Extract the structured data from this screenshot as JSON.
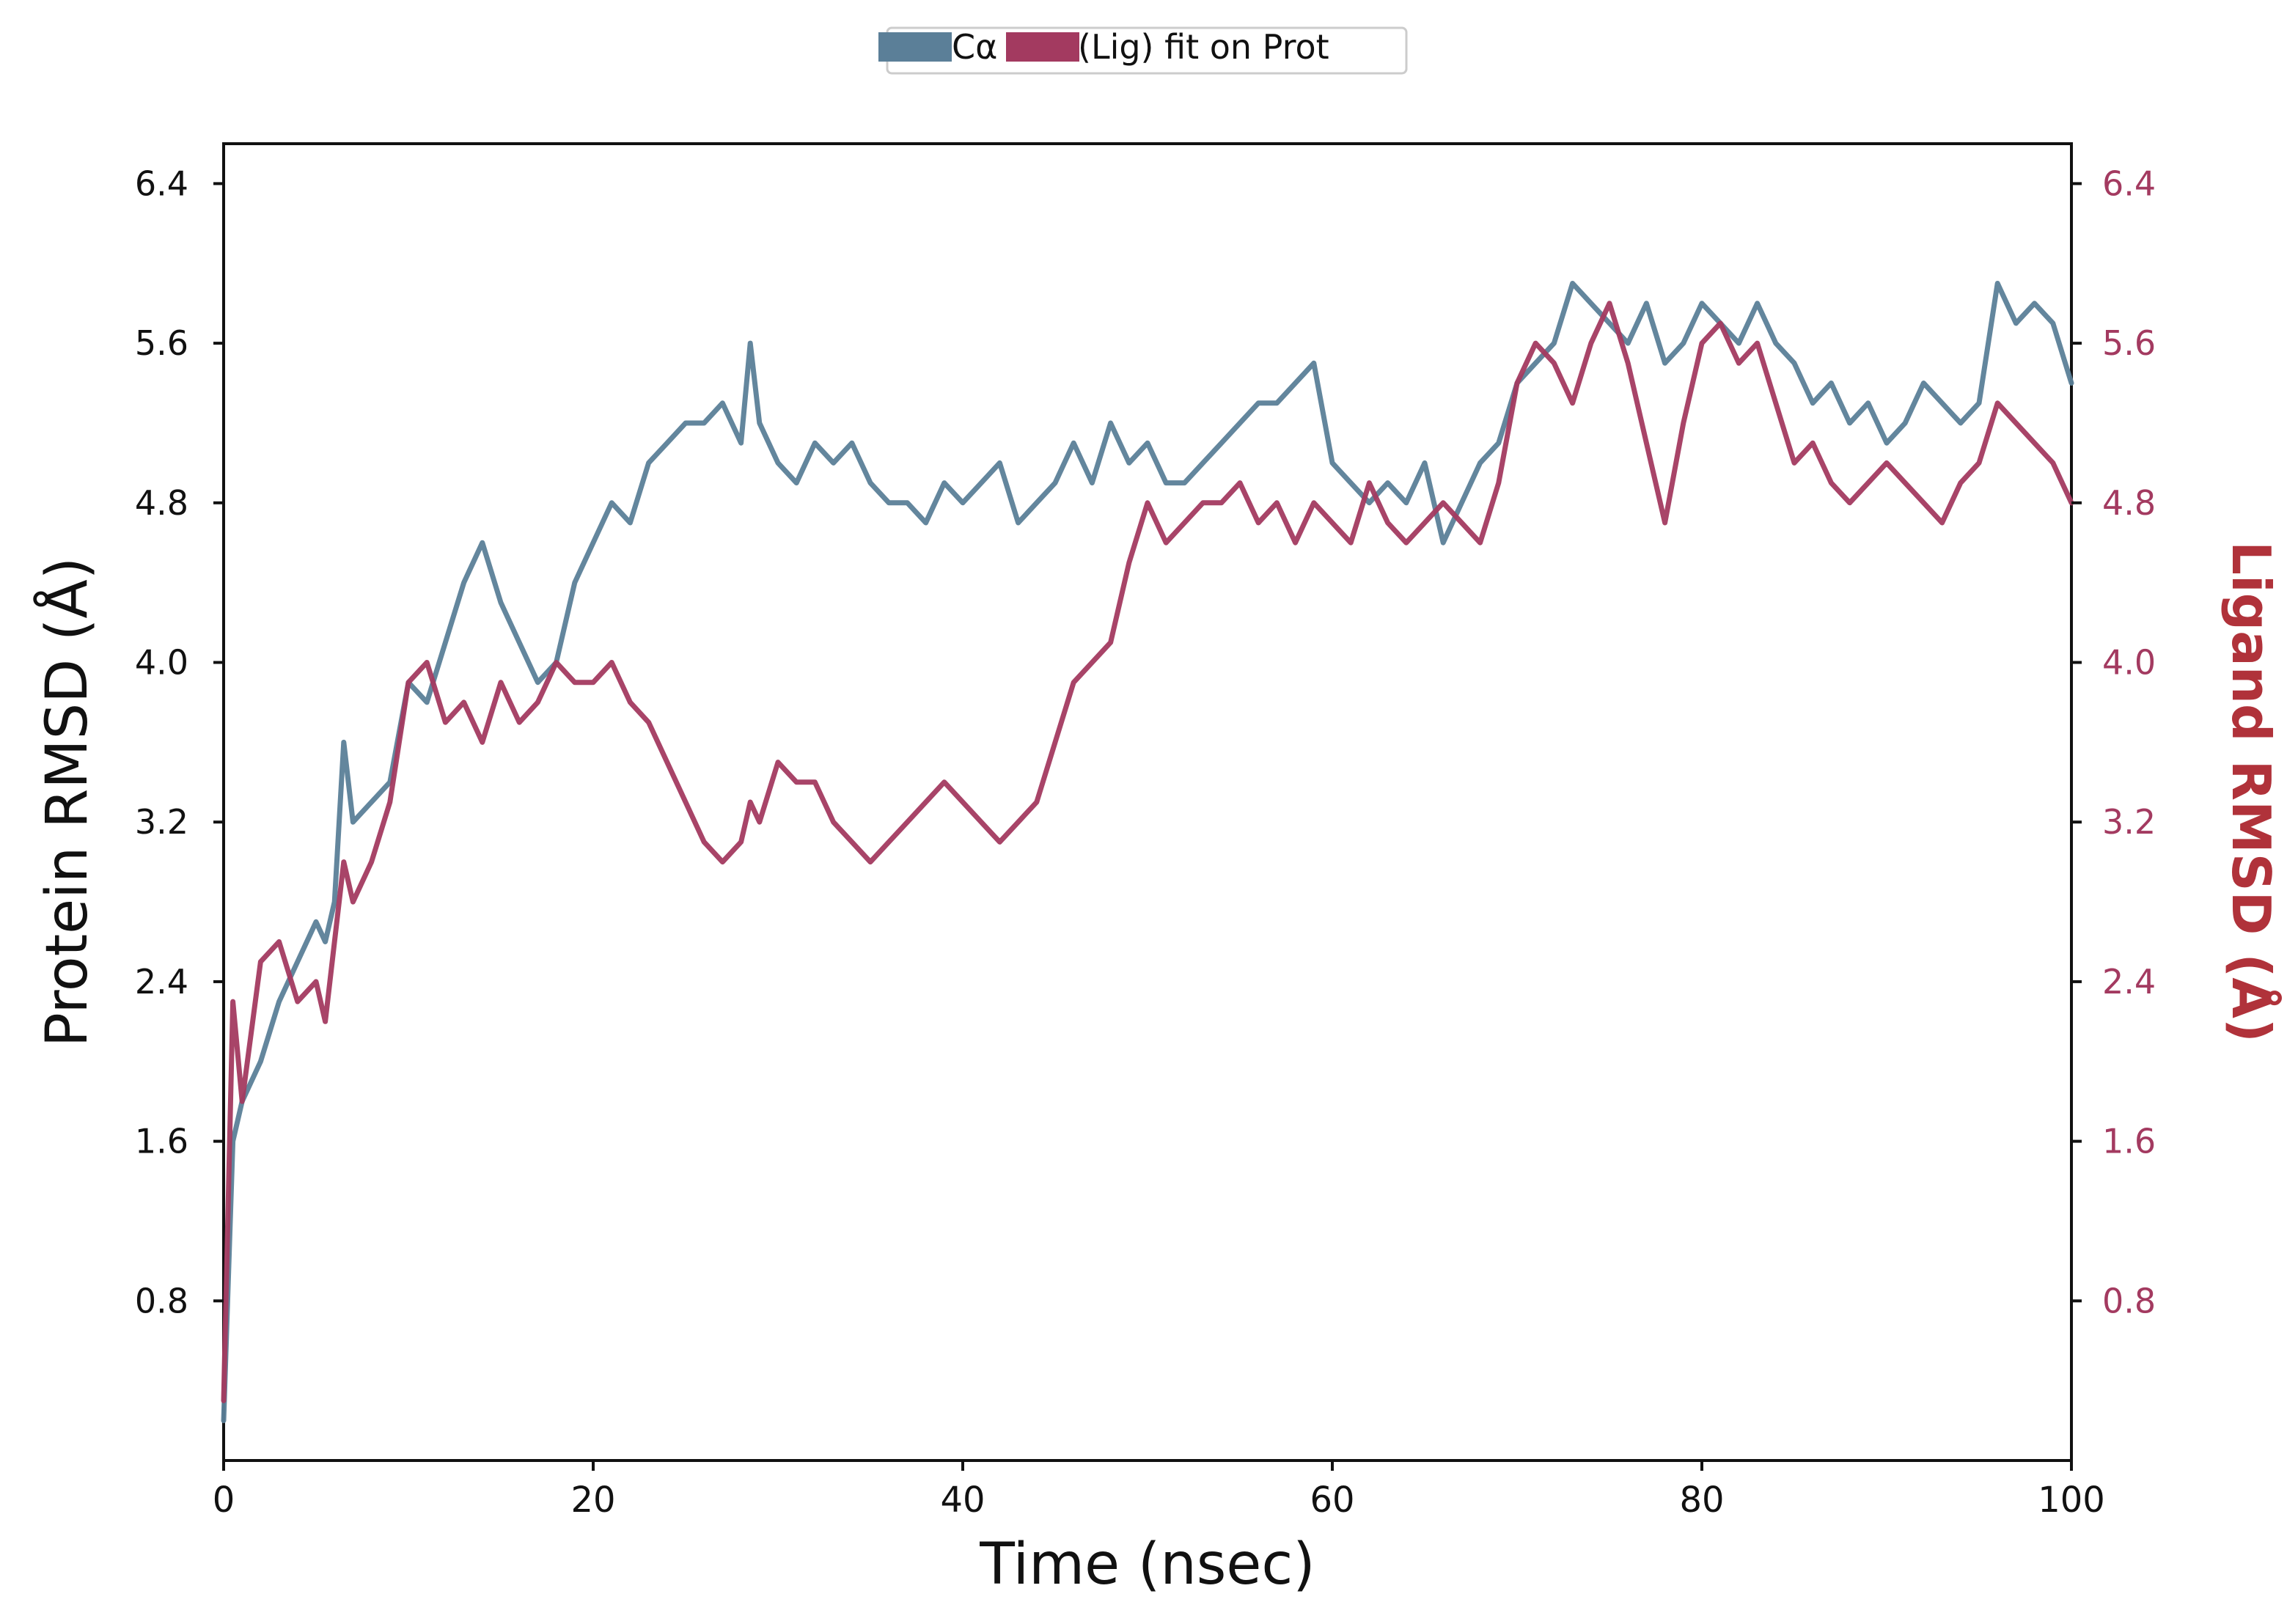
{
  "chart_data": {
    "type": "line",
    "title": "",
    "xlabel": "Time (nsec)",
    "ylabel_left": "Protein RMSD (Å)",
    "ylabel_right": "Ligand RMSD (Å)",
    "xlim": [
      0,
      100
    ],
    "ylim_left": [
      0,
      6.6
    ],
    "ylim_right": [
      0,
      6.6
    ],
    "x_ticks": [
      "0",
      "20",
      "40",
      "60",
      "80",
      "100"
    ],
    "y_ticks_left": [
      "0.8",
      "1.6",
      "2.4",
      "3.2",
      "4.0",
      "4.8",
      "5.6",
      "6.4"
    ],
    "y_ticks_right": [
      "0.8",
      "1.6",
      "2.4",
      "3.2",
      "4.0",
      "4.8",
      "5.6",
      "6.4"
    ],
    "grid": false,
    "legend_position": "top-center",
    "series": [
      {
        "name": "Cα",
        "axis": "left",
        "color": "#5b7f98",
        "x": [
          0,
          0.5,
          1,
          2,
          3,
          4,
          5,
          5.5,
          6,
          6.5,
          7,
          8,
          9,
          10,
          11,
          12,
          13,
          14,
          15,
          16,
          17,
          18,
          19,
          20,
          21,
          22,
          23,
          24,
          25,
          26,
          27,
          28,
          28.5,
          29,
          30,
          31,
          32,
          33,
          34,
          35,
          36,
          37,
          38,
          39,
          40,
          41,
          42,
          43,
          44,
          45,
          46,
          47,
          48,
          49,
          50,
          51,
          52,
          53,
          54,
          55,
          56,
          57,
          58,
          59,
          60,
          61,
          62,
          63,
          64,
          65,
          66,
          67,
          68,
          69,
          70,
          71,
          72,
          73,
          74,
          75,
          76,
          77,
          78,
          79,
          80,
          81,
          82,
          83,
          84,
          85,
          86,
          87,
          88,
          89,
          90,
          91,
          92,
          93,
          94,
          95,
          96,
          97,
          98,
          99,
          100
        ],
        "y": [
          0.2,
          1.6,
          1.8,
          2.0,
          2.3,
          2.5,
          2.7,
          2.6,
          2.8,
          3.6,
          3.2,
          3.3,
          3.4,
          3.9,
          3.8,
          4.1,
          4.4,
          4.6,
          4.3,
          4.1,
          3.9,
          4.0,
          4.4,
          4.6,
          4.8,
          4.7,
          5.0,
          5.1,
          5.2,
          5.2,
          5.3,
          5.1,
          5.6,
          5.2,
          5.0,
          4.9,
          5.1,
          5.0,
          5.1,
          4.9,
          4.8,
          4.8,
          4.7,
          4.9,
          4.8,
          4.9,
          5.0,
          4.7,
          4.8,
          4.9,
          5.1,
          4.9,
          5.2,
          5.0,
          5.1,
          4.9,
          4.9,
          5.0,
          5.1,
          5.2,
          5.3,
          5.3,
          5.4,
          5.5,
          5.0,
          4.9,
          4.8,
          4.9,
          4.8,
          5.0,
          4.6,
          4.8,
          5.0,
          5.1,
          5.4,
          5.5,
          5.6,
          5.9,
          5.8,
          5.7,
          5.6,
          5.8,
          5.5,
          5.6,
          5.8,
          5.7,
          5.6,
          5.8,
          5.6,
          5.5,
          5.3,
          5.4,
          5.2,
          5.3,
          5.1,
          5.2,
          5.4,
          5.3,
          5.2,
          5.3,
          5.9,
          5.7,
          5.8,
          5.7,
          5.4
        ]
      },
      {
        "name": "(Lig) fit on Prot",
        "axis": "right",
        "color": "#a33a60",
        "x": [
          0,
          0.5,
          1,
          2,
          3,
          4,
          5,
          5.5,
          6,
          6.5,
          7,
          8,
          9,
          10,
          11,
          12,
          13,
          14,
          15,
          16,
          17,
          18,
          19,
          20,
          21,
          22,
          23,
          24,
          25,
          26,
          27,
          28,
          28.5,
          29,
          30,
          31,
          32,
          33,
          34,
          35,
          36,
          37,
          38,
          39,
          40,
          41,
          42,
          43,
          44,
          45,
          46,
          47,
          48,
          49,
          50,
          51,
          52,
          53,
          54,
          55,
          56,
          57,
          58,
          59,
          60,
          61,
          62,
          63,
          64,
          65,
          66,
          67,
          68,
          69,
          70,
          71,
          72,
          73,
          74,
          75,
          76,
          77,
          78,
          79,
          80,
          81,
          82,
          83,
          84,
          85,
          86,
          87,
          88,
          89,
          90,
          91,
          92,
          93,
          94,
          95,
          96,
          97,
          98,
          99,
          100
        ],
        "y": [
          0.3,
          2.3,
          1.8,
          2.5,
          2.6,
          2.3,
          2.4,
          2.2,
          2.6,
          3.0,
          2.8,
          3.0,
          3.3,
          3.9,
          4.0,
          3.7,
          3.8,
          3.6,
          3.9,
          3.7,
          3.8,
          4.0,
          3.9,
          3.9,
          4.0,
          3.8,
          3.7,
          3.5,
          3.3,
          3.1,
          3.0,
          3.1,
          3.3,
          3.2,
          3.5,
          3.4,
          3.4,
          3.2,
          3.1,
          3.0,
          3.1,
          3.2,
          3.3,
          3.4,
          3.3,
          3.2,
          3.1,
          3.2,
          3.3,
          3.6,
          3.9,
          4.0,
          4.1,
          4.5,
          4.8,
          4.6,
          4.7,
          4.8,
          4.8,
          4.9,
          4.7,
          4.8,
          4.6,
          4.8,
          4.7,
          4.6,
          4.9,
          4.7,
          4.6,
          4.7,
          4.8,
          4.7,
          4.6,
          4.9,
          5.4,
          5.6,
          5.5,
          5.3,
          5.6,
          5.8,
          5.5,
          5.1,
          4.7,
          5.2,
          5.6,
          5.7,
          5.5,
          5.6,
          5.3,
          5.0,
          5.1,
          4.9,
          4.8,
          4.9,
          5.0,
          4.9,
          4.8,
          4.7,
          4.9,
          5.0,
          5.3,
          5.2,
          5.1,
          5.0,
          4.8
        ]
      }
    ]
  }
}
